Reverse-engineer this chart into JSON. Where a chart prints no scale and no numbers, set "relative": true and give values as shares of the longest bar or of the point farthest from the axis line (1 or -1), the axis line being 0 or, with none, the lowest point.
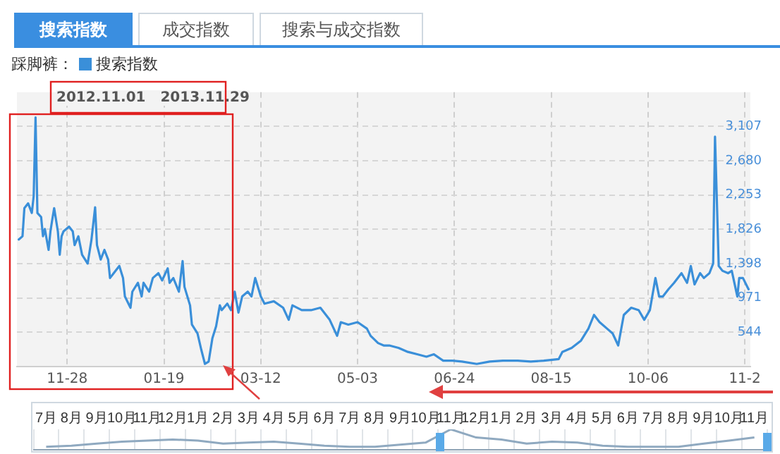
{
  "chart_data": [
    {
      "type": "other",
      "annotations": [
        "搜索指数",
        "成交指数",
        "搜索与成交指数"
      ]
    },
    {
      "type": "line",
      "legend_title": "踩脚裤：",
      "legend": "top left",
      "grid": true,
      "marker": "none",
      "line_style": "solid",
      "annotations": [
        "2012.11.01   2013.11.29"
      ],
      "xlim": [
        "2012-11-01",
        "2013-11-30"
      ],
      "xticks": [
        {
          "value": "2012-11-28",
          "label": "11-28"
        },
        {
          "value": "2013-01-19",
          "label": "01-19"
        },
        {
          "value": "2013-03-12",
          "label": "03-12"
        },
        {
          "value": "2013-05-03",
          "label": "05-03"
        },
        {
          "value": "2013-06-24",
          "label": "06-24"
        },
        {
          "value": "2013-08-15",
          "label": "08-15"
        },
        {
          "value": "2013-10-06",
          "label": "10-06"
        },
        {
          "value": "2013-11-27",
          "label": "11-2"
        }
      ],
      "ylim": [
        117,
        3534
      ],
      "yticks": [
        544,
        971,
        {
          "value": 1398,
          "label": "1,398"
        },
        {
          "value": 1826,
          "label": "1,826"
        },
        {
          "value": 2253,
          "label": "2,253"
        },
        {
          "value": 2680,
          "label": "2,680"
        },
        {
          "value": 3107,
          "label": "3,107"
        }
      ],
      "series": [
        {
          "name": "搜索指数",
          "color": "#3a8fd9",
          "x": [
            "2012-11-02",
            "2012-11-04",
            "2012-11-05",
            "2012-11-07",
            "2012-11-09",
            "2012-11-10",
            "2012-11-11",
            "2012-11-12",
            "2012-11-14",
            "2012-11-15",
            "2012-11-16",
            "2012-11-18",
            "2012-11-19",
            "2012-11-20",
            "2012-11-21",
            "2012-11-23",
            "2012-11-24",
            "2012-11-25",
            "2012-11-26",
            "2012-11-29",
            "2012-12-01",
            "2012-12-02",
            "2012-12-04",
            "2012-12-06",
            "2012-12-09",
            "2012-12-11",
            "2012-12-13",
            "2012-12-14",
            "2012-12-16",
            "2012-12-18",
            "2012-12-20",
            "2012-12-21",
            "2012-12-23",
            "2012-12-26",
            "2012-12-28",
            "2012-12-29",
            "2013-01-01",
            "2013-01-02",
            "2013-01-05",
            "2013-01-07",
            "2013-01-08",
            "2013-01-11",
            "2013-01-13",
            "2013-01-16",
            "2013-01-18",
            "2013-01-21",
            "2013-01-22",
            "2013-01-24",
            "2013-01-27",
            "2013-01-29",
            "2013-01-30",
            "2013-02-02",
            "2013-02-03",
            "2013-02-06",
            "2013-02-08",
            "2013-02-10",
            "2013-02-12",
            "2013-02-14",
            "2013-02-16",
            "2013-02-18",
            "2013-02-19",
            "2013-02-22",
            "2013-02-24",
            "2013-02-26",
            "2013-02-28",
            "2013-03-02",
            "2013-03-05",
            "2013-03-07",
            "2013-03-09",
            "2013-03-12",
            "2013-03-14",
            "2013-03-19",
            "2013-03-24",
            "2013-03-27",
            "2013-03-29",
            "2013-04-03",
            "2013-04-08",
            "2013-04-13",
            "2013-04-18",
            "2013-04-22",
            "2013-04-24",
            "2013-04-28",
            "2013-05-03",
            "2013-05-08",
            "2013-05-10",
            "2013-05-14",
            "2013-05-17",
            "2013-05-20",
            "2013-05-25",
            "2013-05-30",
            "2013-06-04",
            "2013-06-09",
            "2013-06-13",
            "2013-06-18",
            "2013-06-23",
            "2013-06-28",
            "2013-07-06",
            "2013-07-13",
            "2013-07-20",
            "2013-07-28",
            "2013-08-04",
            "2013-08-11",
            "2013-08-19",
            "2013-08-21",
            "2013-08-26",
            "2013-08-31",
            "2013-09-04",
            "2013-09-07",
            "2013-09-10",
            "2013-09-14",
            "2013-09-17",
            "2013-09-20",
            "2013-09-23",
            "2013-09-27",
            "2013-10-01",
            "2013-10-04",
            "2013-10-07",
            "2013-10-10",
            "2013-10-12",
            "2013-10-14",
            "2013-10-17",
            "2013-10-20",
            "2013-10-24",
            "2013-10-27",
            "2013-10-29",
            "2013-10-31",
            "2013-11-03",
            "2013-11-05",
            "2013-11-08",
            "2013-11-10",
            "2013-11-11",
            "2013-11-13",
            "2013-11-15",
            "2013-11-18",
            "2013-11-20",
            "2013-11-23",
            "2013-11-24",
            "2013-11-26",
            "2013-11-29"
          ],
          "values": [
            1700,
            1740,
            2090,
            2150,
            2030,
            2240,
            3220,
            2030,
            1980,
            1740,
            1830,
            1570,
            1800,
            1950,
            2090,
            1800,
            1510,
            1740,
            1800,
            1860,
            1800,
            1630,
            1740,
            1510,
            1400,
            1690,
            2100,
            1630,
            1450,
            1570,
            1450,
            1220,
            1280,
            1370,
            1220,
            990,
            850,
            1050,
            1160,
            990,
            1160,
            1050,
            1220,
            1280,
            1190,
            1340,
            1160,
            1220,
            1050,
            1430,
            1110,
            880,
            640,
            530,
            330,
            150,
            180,
            470,
            620,
            880,
            820,
            900,
            820,
            1050,
            790,
            990,
            1050,
            990,
            1220,
            990,
            900,
            930,
            850,
            700,
            880,
            820,
            820,
            850,
            700,
            500,
            670,
            640,
            670,
            590,
            500,
            410,
            380,
            380,
            350,
            300,
            270,
            240,
            270,
            190,
            190,
            180,
            150,
            180,
            190,
            190,
            180,
            190,
            210,
            300,
            350,
            440,
            590,
            760,
            670,
            590,
            530,
            380,
            760,
            850,
            820,
            700,
            820,
            1220,
            990,
            990,
            1080,
            1160,
            1280,
            1160,
            1370,
            1140,
            1280,
            1220,
            1280,
            1400,
            2980,
            1370,
            1310,
            1280,
            1310,
            990,
            1220,
            1220,
            1080
          ]
        }
      ]
    },
    {
      "type": "line",
      "relative": true,
      "categories": [
        "7月",
        "8月",
        "9月",
        "10月",
        "11月",
        "12月",
        "1月",
        "2月",
        "3月",
        "4月",
        "5月",
        "6月",
        "7月",
        "8月",
        "9月",
        "10月",
        "11月",
        "12月",
        "1月",
        "2月",
        "3月",
        "4月",
        "5月",
        "6月",
        "7月",
        "8月",
        "9月",
        "10月",
        "11月"
      ],
      "series": [
        {
          "color": "#8fa9c0",
          "values": [
            0.15,
            0.2,
            0.3,
            0.4,
            0.45,
            0.5,
            0.45,
            0.3,
            0.35,
            0.4,
            0.3,
            0.2,
            0.15,
            0.15,
            0.25,
            0.35,
            1,
            0.6,
            0.5,
            0.3,
            0.4,
            0.35,
            0.2,
            0.15,
            0.15,
            0.15,
            0.3,
            0.45,
            0.6
          ]
        }
      ]
    }
  ]
}
